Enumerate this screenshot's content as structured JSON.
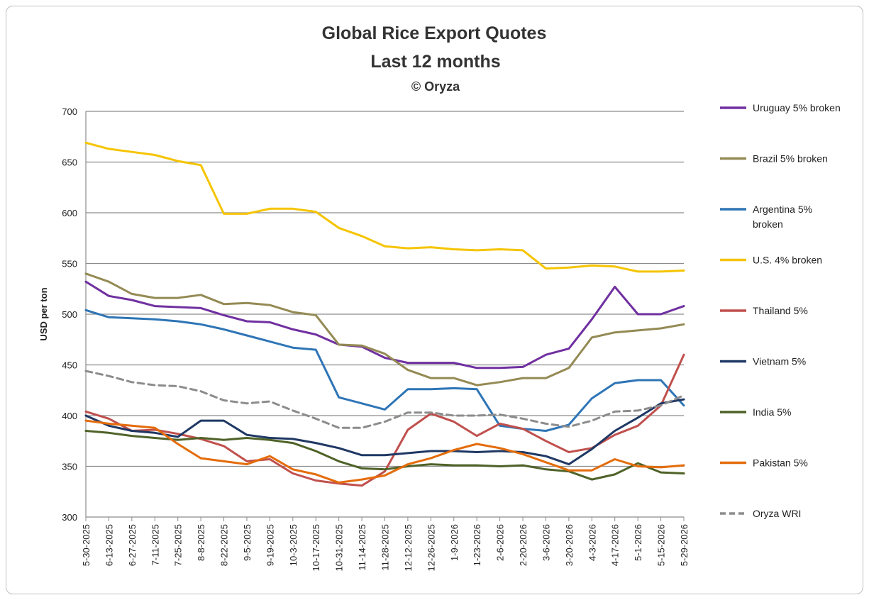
{
  "chart_data": {
    "type": "line",
    "title": "Global Rice Export Quotes",
    "subtitle": "Last 12 months",
    "copyright": "© Oryza",
    "ylabel": "USD per ton",
    "xlabel": "",
    "ylim": [
      300,
      700
    ],
    "yticks": [
      300,
      350,
      400,
      450,
      500,
      550,
      600,
      650,
      700
    ],
    "grid": true,
    "legend_position": "right",
    "xticks": [
      "5-30-2025",
      "6-13-2025",
      "6-27-2025",
      "7-11-2025",
      "7-25-2025",
      "8-8-2025",
      "8-22-2025",
      "9-5-2025",
      "9-19-2025",
      "10-3-2025",
      "10-17-2025",
      "10-31-2025",
      "11-14-2025",
      "11-28-2025",
      "12-12-2025",
      "12-26-2025",
      "1-9-2026",
      "1-23-2026",
      "2-6-2026",
      "2-20-2026",
      "3-6-2026",
      "3-20-2026",
      "4-3-2026",
      "4-17-2026",
      "5-1-2026",
      "5-15-2026",
      "5-29-2026"
    ],
    "series": [
      {
        "name": "Uruguay 5% broken",
        "color": "#7030a0",
        "dash": false,
        "values": [
          532,
          518,
          514,
          508,
          507,
          506,
          499,
          493,
          492,
          485,
          480,
          470,
          468,
          457,
          452,
          452,
          452,
          447,
          447,
          448,
          460,
          466,
          495,
          527,
          500,
          500,
          508
        ]
      },
      {
        "name": "Brazil 5% broken",
        "color": "#948a54",
        "dash": false,
        "values": [
          540,
          532,
          520,
          516,
          516,
          519,
          510,
          511,
          509,
          502,
          499,
          470,
          469,
          461,
          445,
          437,
          437,
          430,
          433,
          437,
          437,
          447,
          477,
          482,
          484,
          486,
          490
        ]
      },
      {
        "name": "Argentina 5% broken",
        "color": "#2e75b6",
        "dash": false,
        "values": [
          504,
          497,
          496,
          495,
          493,
          490,
          485,
          479,
          473,
          467,
          465,
          418,
          412,
          406,
          426,
          426,
          427,
          426,
          390,
          387,
          385,
          391,
          417,
          432,
          435,
          435,
          410
        ]
      },
      {
        "name": "U.S. 4% broken",
        "color": "#f5c400",
        "dash": false,
        "values": [
          669,
          663,
          660,
          657,
          651,
          647,
          599,
          599,
          604,
          604,
          601,
          585,
          577,
          567,
          565,
          566,
          564,
          563,
          564,
          563,
          545,
          546,
          548,
          547,
          542,
          542,
          543
        ]
      },
      {
        "name": "Thailand 5%",
        "color": "#c0504d",
        "dash": false,
        "values": [
          404,
          397,
          385,
          386,
          382,
          377,
          370,
          355,
          357,
          343,
          336,
          333,
          331,
          345,
          386,
          402,
          394,
          380,
          392,
          387,
          375,
          364,
          368,
          381,
          390,
          410,
          460
        ]
      },
      {
        "name": "Vietnam 5%",
        "color": "#1f3864",
        "dash": false,
        "values": [
          400,
          390,
          385,
          383,
          379,
          395,
          395,
          381,
          378,
          377,
          373,
          368,
          361,
          361,
          363,
          365,
          365,
          364,
          365,
          364,
          360,
          352,
          367,
          385,
          398,
          412,
          416
        ]
      },
      {
        "name": "India 5%",
        "color": "#4f6228",
        "dash": false,
        "values": [
          385,
          383,
          380,
          378,
          376,
          378,
          376,
          378,
          376,
          373,
          365,
          355,
          348,
          347,
          350,
          352,
          351,
          351,
          350,
          351,
          347,
          345,
          337,
          342,
          353,
          344,
          343
        ]
      },
      {
        "name": "Pakistan 5%",
        "color": "#e46c0a",
        "dash": false,
        "values": [
          395,
          392,
          390,
          388,
          372,
          358,
          355,
          352,
          360,
          347,
          342,
          334,
          337,
          341,
          352,
          358,
          366,
          372,
          368,
          362,
          354,
          346,
          346,
          357,
          350,
          349,
          351
        ]
      },
      {
        "name": "Oryza WRI",
        "color": "#8c8c8c",
        "dash": true,
        "values": [
          444,
          439,
          433,
          430,
          429,
          424,
          415,
          412,
          414,
          405,
          397,
          388,
          388,
          394,
          403,
          403,
          400,
          400,
          401,
          397,
          392,
          389,
          395,
          404,
          405,
          410,
          420
        ]
      }
    ]
  }
}
